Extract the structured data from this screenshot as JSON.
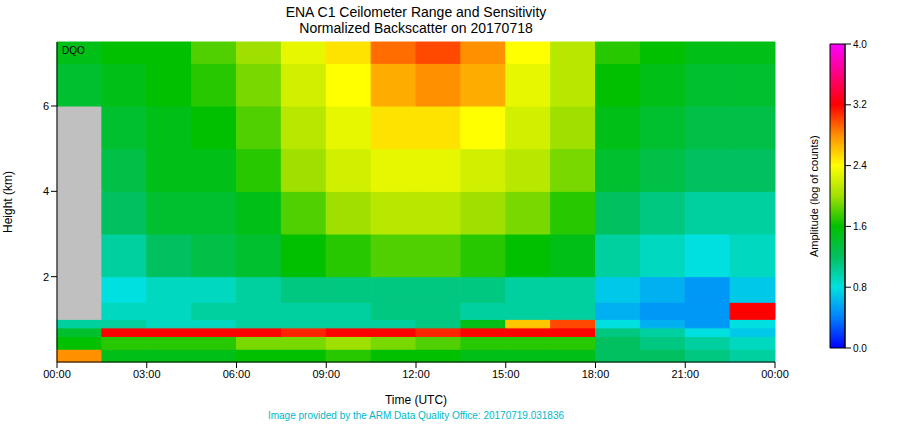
{
  "chart_data": {
    "type": "heatmap",
    "title": "ENA C1 Ceilometer Range and Sensitivity",
    "subtitle": "Normalized Backscatter on 20170718",
    "x_label": "Time (UTC)",
    "y_label": "Height (km)",
    "annotations": [
      "DQO",
      "Image provided by the ARM Data Quality Office: 20170719.031836"
    ],
    "xlim": [
      0,
      24
    ],
    "xticks": [
      {
        "value": 0,
        "label": "00:00"
      },
      {
        "value": 3,
        "label": "03:00"
      },
      {
        "value": 6,
        "label": "06:00"
      },
      {
        "value": 9,
        "label": "09:00"
      },
      {
        "value": 12,
        "label": "12:00"
      },
      {
        "value": 15,
        "label": "15:00"
      },
      {
        "value": 18,
        "label": "18:00"
      },
      {
        "value": 21,
        "label": "21:00"
      },
      {
        "value": 24,
        "label": "00:00"
      }
    ],
    "ylim": [
      0,
      7.5
    ],
    "yticks": [
      2,
      4,
      6
    ],
    "x_edges": [
      0,
      1.5,
      3,
      4.5,
      6,
      7.5,
      9,
      10.5,
      12,
      13.5,
      15,
      16.5,
      18,
      19.5,
      21,
      22.5,
      24
    ],
    "y_edges": [
      0,
      0.3,
      0.6,
      0.8,
      1.0,
      1.4,
      2,
      3,
      4,
      5,
      6,
      7,
      7.5
    ],
    "cells": [
      [
        2.8,
        1.5,
        1.5,
        1.5,
        1.6,
        1.6,
        1.7,
        1.6,
        1.6,
        1.5,
        1.5,
        1.5,
        1.2,
        1.2,
        1.1,
        1.0
      ],
      [
        1.6,
        1.7,
        1.7,
        1.7,
        1.9,
        1.9,
        2.0,
        1.9,
        1.8,
        1.7,
        1.7,
        1.7,
        1.2,
        1.1,
        1.0,
        0.9
      ],
      [
        1.4,
        3.2,
        3.2,
        3.2,
        3.2,
        3.1,
        3.2,
        3.2,
        3.1,
        3.2,
        3.2,
        3.2,
        1.1,
        1.0,
        0.8,
        0.7
      ],
      [
        1.0,
        1.0,
        0.9,
        0.9,
        1.0,
        1.0,
        1.0,
        1.0,
        1.1,
        1.5,
        2.6,
        3.0,
        0.8,
        0.6,
        0.5,
        0.8
      ],
      [
        null,
        0.9,
        0.9,
        1.0,
        1.0,
        1.0,
        1.0,
        1.1,
        1.1,
        1.0,
        1.0,
        1.0,
        0.6,
        0.5,
        0.5,
        3.2
      ],
      [
        null,
        0.8,
        0.9,
        0.9,
        1.0,
        1.1,
        1.1,
        1.1,
        1.1,
        1.1,
        1.0,
        1.0,
        0.7,
        0.6,
        0.5,
        0.7
      ],
      [
        null,
        1.0,
        1.2,
        1.3,
        1.4,
        1.6,
        1.7,
        1.8,
        1.8,
        1.7,
        1.6,
        1.5,
        1.0,
        0.9,
        0.8,
        0.9
      ],
      [
        null,
        1.2,
        1.4,
        1.4,
        1.5,
        1.8,
        2.0,
        2.1,
        2.1,
        2.0,
        1.9,
        1.7,
        1.2,
        1.1,
        1.0,
        1.0
      ],
      [
        null,
        1.3,
        1.5,
        1.5,
        1.7,
        2.0,
        2.2,
        2.3,
        2.3,
        2.2,
        2.1,
        1.9,
        1.4,
        1.3,
        1.2,
        1.2
      ],
      [
        null,
        1.4,
        1.5,
        1.6,
        1.8,
        2.1,
        2.3,
        2.5,
        2.5,
        2.4,
        2.2,
        2.0,
        1.5,
        1.4,
        1.3,
        1.3
      ],
      [
        1.4,
        1.5,
        1.6,
        1.7,
        1.9,
        2.2,
        2.4,
        2.7,
        2.8,
        2.7,
        2.3,
        2.1,
        1.6,
        1.5,
        1.4,
        1.4
      ],
      [
        1.5,
        1.6,
        1.6,
        1.8,
        2.0,
        2.3,
        2.5,
        2.9,
        3.0,
        2.8,
        2.4,
        2.1,
        1.7,
        1.6,
        1.5,
        1.5
      ]
    ],
    "colorbar": {
      "label": "Amplitude (log of counts)",
      "range": [
        0,
        4
      ],
      "ticks": [
        {
          "value": 0,
          "label": "0.0"
        },
        0.8,
        1.6,
        2.4,
        3.2,
        {
          "value": 4,
          "label": "4.0"
        }
      ]
    }
  }
}
